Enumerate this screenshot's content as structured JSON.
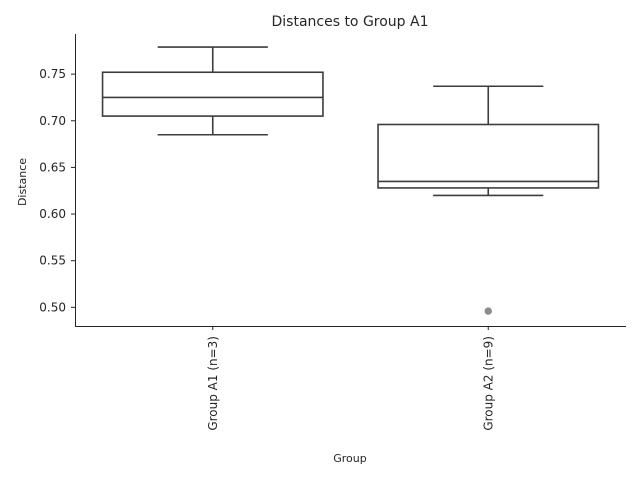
{
  "chart_data": {
    "type": "box",
    "title": "Distances to Group A1",
    "xlabel": "Group",
    "ylabel": "Distance",
    "ylim": [
      0.48,
      0.793
    ],
    "yticks": [
      0.5,
      0.55,
      0.6,
      0.65,
      0.7,
      0.75
    ],
    "grid": false,
    "categories": [
      "Group A1 (n=3)",
      "Group A2 (n=9)"
    ],
    "boxes": [
      {
        "whisker_low": 0.685,
        "q1": 0.705,
        "median": 0.725,
        "q3": 0.752,
        "whisker_high": 0.779,
        "outliers": []
      },
      {
        "whisker_low": 0.62,
        "q1": 0.628,
        "median": 0.635,
        "q3": 0.696,
        "whisker_high": 0.737,
        "outliers": [
          0.496
        ]
      }
    ]
  }
}
